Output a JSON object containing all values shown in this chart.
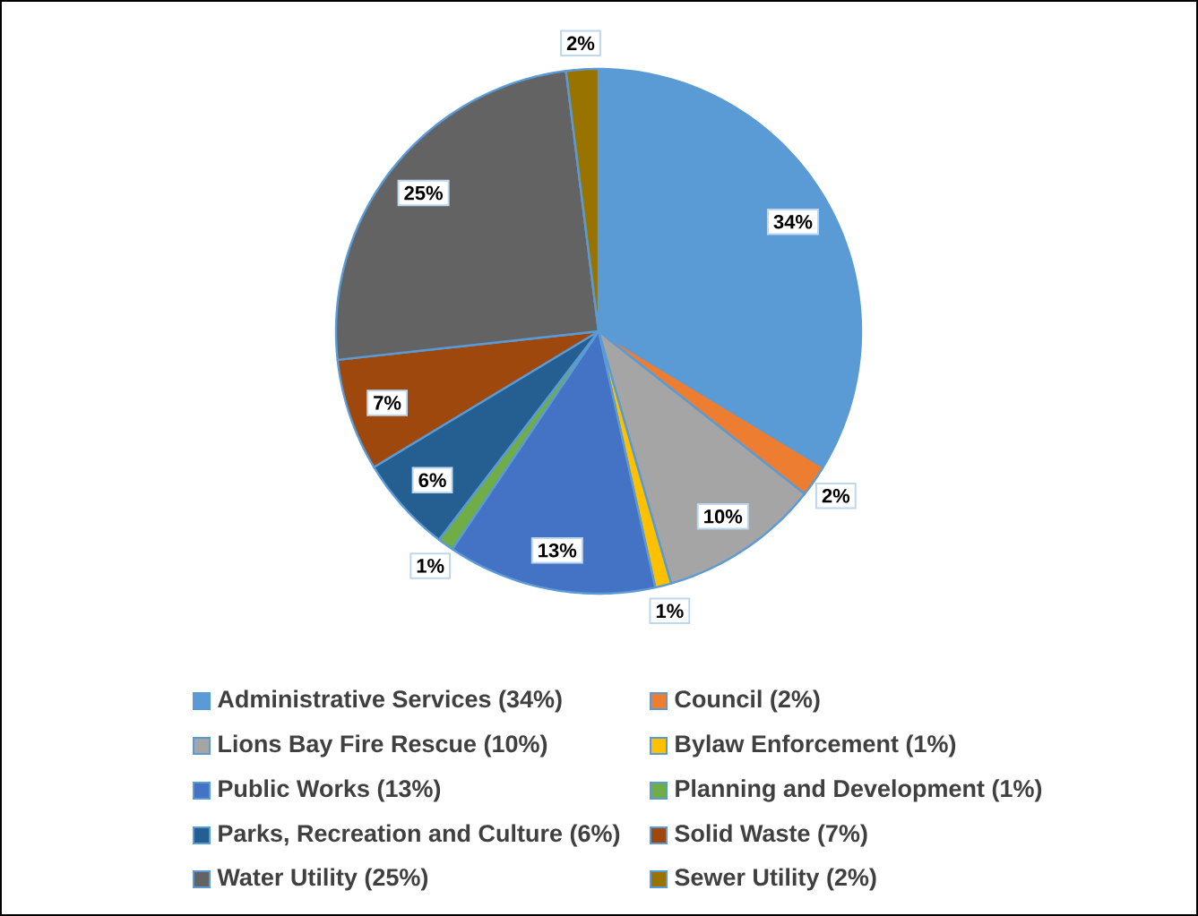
{
  "chart_data": {
    "type": "pie",
    "categories": [
      "Administrative Services (34%)",
      "Council (2%)",
      "Lions Bay Fire Rescue (10%)",
      "Bylaw Enforcement (1%)",
      "Public Works (13%)",
      "Planning and Development (1%)",
      "Parks, Recreation and Culture (6%)",
      "Solid Waste (7%)",
      "Water Utility (25%)",
      "Sewer Utility (2%)"
    ],
    "values": [
      34,
      2,
      10,
      1,
      13,
      1,
      6,
      7,
      25,
      2
    ],
    "value_labels": [
      "34%",
      "2%",
      "10%",
      "1%",
      "13%",
      "1%",
      "6%",
      "7%",
      "25%",
      "2%"
    ],
    "colors": [
      "#5b9bd5",
      "#ed7d31",
      "#a5a5a5",
      "#ffc000",
      "#4472c4",
      "#70ad47",
      "#255e91",
      "#9e480e",
      "#636363",
      "#997300"
    ],
    "legend": "bottom"
  }
}
